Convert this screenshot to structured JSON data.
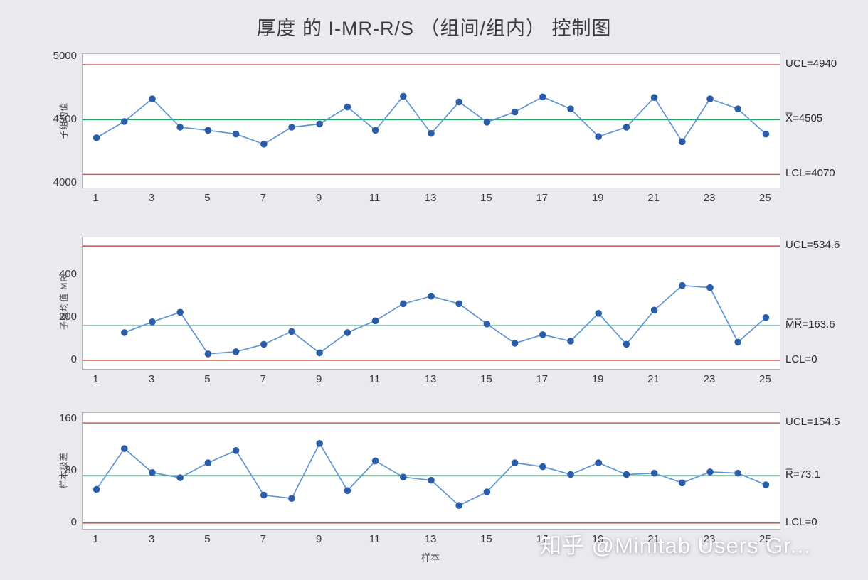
{
  "title": "厚度 的 I-MR-R/S （组间/组内） 控制图",
  "xlabel": "样本",
  "watermark": "知乎 @Minitab Users Gr...",
  "colors": {
    "background": "#e9e9ee",
    "plot_bg": "#ffffff",
    "plot_border": "#b3b3b8",
    "limit_line": "#c9605b",
    "data_line": "#5e95d4",
    "marker": "#2a5ca8"
  },
  "chart_data": [
    {
      "type": "line",
      "name": "subgroup-mean-individuals-chart",
      "ylabel": "子组均值",
      "ucl": 4940,
      "center": 4505,
      "lcl": 4070,
      "ucl_label": "UCL=4940",
      "center_label": "X̅=4505",
      "lcl_label": "LCL=4070",
      "center_color": "#2f9e63",
      "ylim": [
        3965,
        5025
      ],
      "yticks": [
        4000,
        4500,
        5000
      ],
      "xticks": [
        1,
        3,
        5,
        7,
        9,
        11,
        13,
        15,
        17,
        19,
        21,
        23,
        25
      ],
      "x_start": 1,
      "values": [
        4360,
        4490,
        4670,
        4445,
        4420,
        4390,
        4310,
        4445,
        4470,
        4605,
        4420,
        4690,
        4395,
        4645,
        4485,
        4565,
        4685,
        4590,
        4370,
        4445,
        4680,
        4330,
        4670,
        4590,
        4390
      ]
    },
    {
      "type": "line",
      "name": "subgroup-mean-moving-range-chart",
      "ylabel": "子组均值 MR",
      "ucl": 534.6,
      "center": 163.6,
      "lcl": 0,
      "ucl_label": "UCL=534.6",
      "center_label": "M̅R̅=163.6",
      "lcl_label": "LCL=0",
      "center_color": "#93cdbc",
      "ylim": [
        -40,
        575
      ],
      "yticks": [
        0,
        200,
        400
      ],
      "xticks": [
        1,
        3,
        5,
        7,
        9,
        11,
        13,
        15,
        17,
        19,
        21,
        23,
        25
      ],
      "x_start": 2,
      "values": [
        130,
        180,
        225,
        30,
        40,
        75,
        135,
        35,
        130,
        185,
        265,
        300,
        265,
        170,
        80,
        120,
        90,
        220,
        75,
        235,
        350,
        340,
        85,
        200
      ]
    },
    {
      "type": "line",
      "name": "sample-range-chart",
      "ylabel": "样本极差",
      "ucl": 154.5,
      "center": 73.1,
      "lcl": 0,
      "ucl_label": "UCL=154.5",
      "center_label": "R̅=73.1",
      "lcl_label": "LCL=0",
      "center_color": "#57a87f",
      "ylim": [
        -9,
        170
      ],
      "yticks": [
        0,
        80,
        160
      ],
      "xticks": [
        1,
        3,
        5,
        7,
        9,
        11,
        13,
        15,
        17,
        19,
        21,
        23,
        25
      ],
      "x_start": 1,
      "values": [
        52,
        115,
        78,
        70,
        93,
        112,
        43,
        38,
        123,
        50,
        96,
        71,
        66,
        27,
        48,
        93,
        87,
        75,
        93,
        75,
        77,
        62,
        79,
        77,
        59
      ]
    }
  ]
}
